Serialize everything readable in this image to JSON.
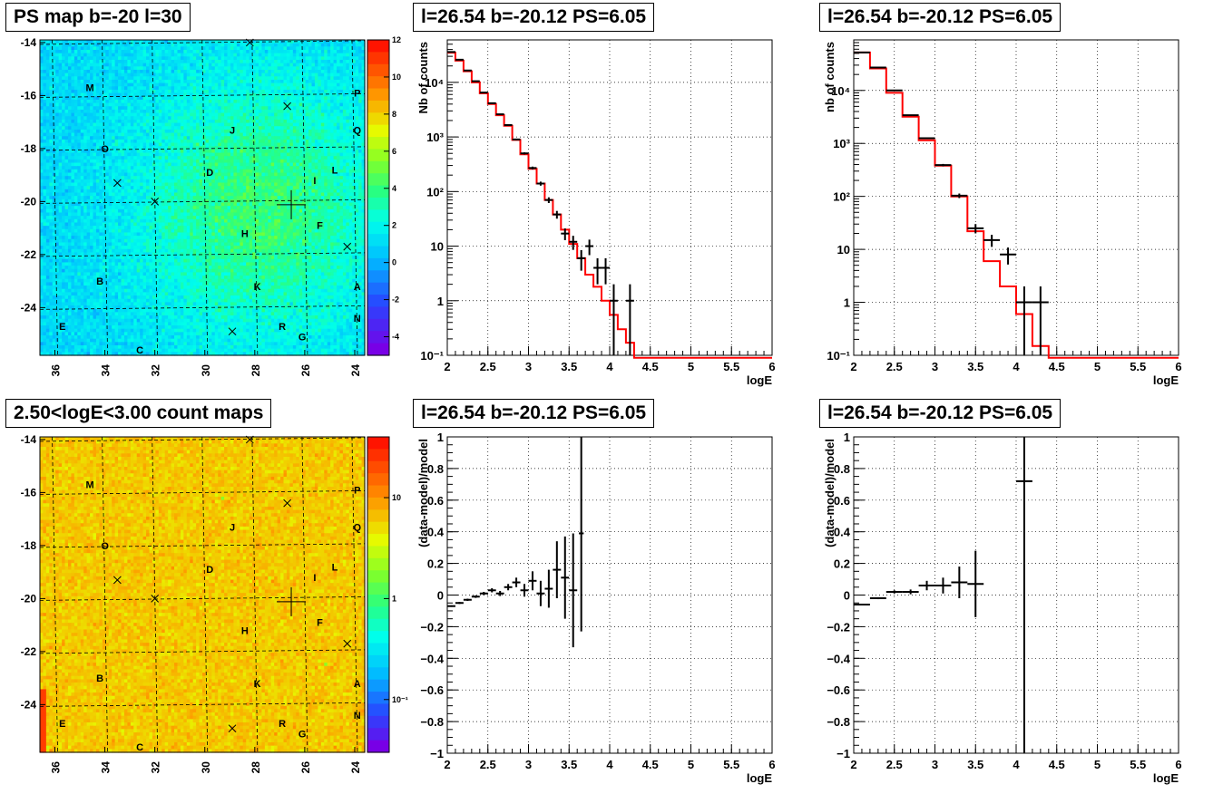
{
  "titles": {
    "map_top": "PS map b=-20 l=30",
    "map_bottom": "2.50<logE<3.00 count maps",
    "spec_mid": "l=26.54 b=-20.12 PS=6.05",
    "spec_right": "l=26.54 b=-20.12 PS=6.05",
    "res_mid": "l=26.54 b=-20.12 PS=6.05",
    "res_right": "l=26.54 b=-20.12 PS=6.05"
  },
  "chart_data": [
    {
      "id": "map_top",
      "type": "heatmap",
      "title": "PS map b=-20 l=30",
      "xticks": [
        "36",
        "34",
        "32",
        "30",
        "28",
        "26",
        "24"
      ],
      "yticks": [
        "-14",
        "-16",
        "-18",
        "-20",
        "-22",
        "-24"
      ],
      "xlim": [
        36.6,
        23.6
      ],
      "ylim": [
        -25.8,
        -13.9
      ],
      "colorbar": {
        "scale": "linear",
        "range": [
          -5,
          12
        ],
        "ticks": [
          "12",
          "10",
          "8",
          "6",
          "4",
          "2",
          "0",
          "-2",
          "-4"
        ]
      },
      "grid": true,
      "labels": [
        {
          "t": "M",
          "l": 34.6,
          "b": -15.7
        },
        {
          "t": "P",
          "l": 23.9,
          "b": -15.9
        },
        {
          "t": "J",
          "l": 28.9,
          "b": -17.3
        },
        {
          "t": "Q",
          "l": 23.9,
          "b": -17.3
        },
        {
          "t": "O",
          "l": 34.0,
          "b": -18.0
        },
        {
          "t": "D",
          "l": 29.8,
          "b": -18.9
        },
        {
          "t": "L",
          "l": 24.8,
          "b": -18.8
        },
        {
          "t": "I",
          "l": 25.6,
          "b": -19.2
        },
        {
          "t": "H",
          "l": 28.4,
          "b": -21.2
        },
        {
          "t": "F",
          "l": 25.4,
          "b": -20.9
        },
        {
          "t": "B",
          "l": 34.2,
          "b": -23.0
        },
        {
          "t": "K",
          "l": 27.9,
          "b": -23.2
        },
        {
          "t": "A",
          "l": 23.9,
          "b": -23.2
        },
        {
          "t": "N",
          "l": 23.9,
          "b": -24.4
        },
        {
          "t": "E",
          "l": 35.7,
          "b": -24.7
        },
        {
          "t": "R",
          "l": 26.9,
          "b": -24.7
        },
        {
          "t": "G",
          "l": 26.1,
          "b": -25.1
        },
        {
          "t": "C",
          "l": 32.6,
          "b": -25.6
        }
      ],
      "markers": [
        {
          "l": 28.2,
          "b": -14.0
        },
        {
          "l": 26.7,
          "b": -16.4
        },
        {
          "l": 33.5,
          "b": -19.3
        },
        {
          "l": 32.0,
          "b": -20.0
        },
        {
          "l": 24.3,
          "b": -21.7
        },
        {
          "l": 28.9,
          "b": -24.9
        }
      ],
      "source": {
        "l": 26.54,
        "b": -20.12
      }
    },
    {
      "id": "map_bottom",
      "type": "heatmap",
      "title": "2.50<logE<3.00 count maps",
      "xticks": [
        "36",
        "34",
        "32",
        "30",
        "28",
        "26",
        "24"
      ],
      "yticks": [
        "-14",
        "-16",
        "-18",
        "-20",
        "-22",
        "-24"
      ],
      "xlim": [
        36.6,
        23.6
      ],
      "ylim": [
        -25.8,
        -13.9
      ],
      "colorbar": {
        "scale": "log",
        "range": [
          0.03,
          40
        ],
        "ticks": [
          "10",
          "1",
          "10⁻¹"
        ]
      },
      "grid": true
    },
    {
      "id": "spec_mid",
      "type": "line",
      "title": "l=26.54 b=-20.12 PS=6.05",
      "xlabel": "logE",
      "ylabel": "Nb of counts",
      "xlim": [
        2,
        6
      ],
      "ylim": [
        0.1,
        60000
      ],
      "yscale": "log",
      "xticks": [
        "2",
        "2.5",
        "3",
        "3.5",
        "4",
        "4.5",
        "5",
        "5.5",
        "6"
      ],
      "yticks": [
        {
          "v": 0.1,
          "t": "10⁻¹"
        },
        {
          "v": 1,
          "t": "1"
        },
        {
          "v": 10,
          "t": "10"
        },
        {
          "v": 100,
          "t": "10²"
        },
        {
          "v": 1000,
          "t": "10³"
        },
        {
          "v": 10000,
          "t": "10⁴"
        }
      ],
      "grid": true,
      "model": {
        "name": "model",
        "color": "#ff0000",
        "edges": [
          2,
          2.1,
          2.2,
          2.3,
          2.4,
          2.5,
          2.6,
          2.7,
          2.8,
          2.9,
          3.0,
          3.1,
          3.2,
          3.3,
          3.4,
          3.5,
          3.6,
          3.7,
          3.8,
          3.9,
          4.0,
          4.1,
          4.2,
          4.3,
          6
        ],
        "values": [
          35000,
          25000,
          16000,
          10000,
          6300,
          4000,
          2500,
          1600,
          880,
          480,
          260,
          140,
          70,
          38,
          20,
          11,
          6,
          3,
          1.8,
          1.0,
          0.55,
          0.3,
          0.17,
          0.09
        ]
      },
      "data": [
        {
          "x": 2.05,
          "y": 36000,
          "dx": 0.05
        },
        {
          "x": 2.15,
          "y": 26000,
          "dx": 0.05
        },
        {
          "x": 2.25,
          "y": 16500,
          "dx": 0.05
        },
        {
          "x": 2.35,
          "y": 10500,
          "dx": 0.05
        },
        {
          "x": 2.45,
          "y": 6500,
          "dx": 0.05
        },
        {
          "x": 2.55,
          "y": 4150,
          "dx": 0.05
        },
        {
          "x": 2.65,
          "y": 2600,
          "dx": 0.05
        },
        {
          "x": 2.75,
          "y": 1650,
          "dx": 0.05
        },
        {
          "x": 2.85,
          "y": 900,
          "dx": 0.05
        },
        {
          "x": 2.95,
          "y": 500,
          "dx": 0.05
        },
        {
          "x": 3.05,
          "y": 270,
          "dx": 0.05
        },
        {
          "x": 3.15,
          "y": 140,
          "dx": 0.05
        },
        {
          "x": 3.25,
          "y": 70,
          "dx": 0.05
        },
        {
          "x": 3.35,
          "y": 38,
          "dx": 0.05
        },
        {
          "x": 3.45,
          "y": 17,
          "dx": 0.05
        },
        {
          "x": 3.55,
          "y": 12,
          "dx": 0.05
        },
        {
          "x": 3.65,
          "y": 6,
          "dx": 0.05
        },
        {
          "x": 3.75,
          "y": 10,
          "dx": 0.05
        },
        {
          "x": 3.85,
          "y": 4,
          "dx": 0.05
        },
        {
          "x": 3.95,
          "y": 4,
          "dx": 0.05
        },
        {
          "x": 4.05,
          "y": 1,
          "dx": 0.05
        },
        {
          "x": 4.25,
          "y": 1,
          "dx": 0.05
        }
      ]
    },
    {
      "id": "spec_right",
      "type": "line",
      "title": "l=26.54 b=-20.12 PS=6.05",
      "xlabel": "logE",
      "ylabel": "nb of counts",
      "xlim": [
        2,
        6
      ],
      "ylim": [
        0.1,
        90000
      ],
      "yscale": "log",
      "xticks": [
        "2",
        "2.5",
        "3",
        "3.5",
        "4",
        "4.5",
        "5",
        "5.5",
        "6"
      ],
      "yticks": [
        {
          "v": 0.1,
          "t": "10⁻¹"
        },
        {
          "v": 1,
          "t": "1"
        },
        {
          "v": 10,
          "t": "10"
        },
        {
          "v": 100,
          "t": "10²"
        },
        {
          "v": 1000,
          "t": "10³"
        },
        {
          "v": 10000,
          "t": "10⁴"
        }
      ],
      "grid": true,
      "model": {
        "name": "model",
        "color": "#ff0000",
        "edges": [
          2,
          2.2,
          2.4,
          2.6,
          2.8,
          3.0,
          3.2,
          3.4,
          3.6,
          3.8,
          4.0,
          4.2,
          4.4,
          6
        ],
        "values": [
          52000,
          26000,
          9000,
          3200,
          1150,
          380,
          100,
          22,
          6,
          2,
          0.6,
          0.15,
          0.09
        ]
      },
      "data": [
        {
          "x": 2.1,
          "y": 52000,
          "dx": 0.1
        },
        {
          "x": 2.3,
          "y": 27000,
          "dx": 0.1
        },
        {
          "x": 2.5,
          "y": 10000,
          "dx": 0.1
        },
        {
          "x": 2.7,
          "y": 3400,
          "dx": 0.1
        },
        {
          "x": 2.9,
          "y": 1250,
          "dx": 0.1
        },
        {
          "x": 3.1,
          "y": 390,
          "dx": 0.1
        },
        {
          "x": 3.3,
          "y": 103,
          "dx": 0.1
        },
        {
          "x": 3.5,
          "y": 25,
          "dx": 0.1
        },
        {
          "x": 3.7,
          "y": 15,
          "dx": 0.1
        },
        {
          "x": 3.9,
          "y": 8,
          "dx": 0.1
        },
        {
          "x": 4.1,
          "y": 1,
          "dx": 0.1
        },
        {
          "x": 4.3,
          "y": 1,
          "dx": 0.1
        }
      ]
    },
    {
      "id": "res_mid",
      "type": "scatter",
      "title": "l=26.54 b=-20.12 PS=6.05",
      "xlabel": "logE",
      "ylabel": "(data-model)/model",
      "xlim": [
        2,
        6
      ],
      "ylim": [
        -1,
        1
      ],
      "xticks": [
        "2",
        "2.5",
        "3",
        "3.5",
        "4",
        "4.5",
        "5",
        "5.5",
        "6"
      ],
      "yticks": [
        "-1",
        "-0.8",
        "-0.6",
        "-0.4",
        "-0.2",
        "0",
        "0.2",
        "0.4",
        "0.6",
        "0.8",
        "1"
      ],
      "grid": true,
      "points": [
        {
          "x": 2.05,
          "y": -0.07,
          "dx": 0.05,
          "e": 0.005
        },
        {
          "x": 2.15,
          "y": -0.05,
          "dx": 0.05,
          "e": 0.006
        },
        {
          "x": 2.25,
          "y": -0.03,
          "dx": 0.05,
          "e": 0.007
        },
        {
          "x": 2.35,
          "y": -0.01,
          "dx": 0.05,
          "e": 0.008
        },
        {
          "x": 2.45,
          "y": 0.01,
          "dx": 0.05,
          "e": 0.01
        },
        {
          "x": 2.55,
          "y": 0.03,
          "dx": 0.05,
          "e": 0.013
        },
        {
          "x": 2.65,
          "y": 0.01,
          "dx": 0.05,
          "e": 0.016
        },
        {
          "x": 2.75,
          "y": 0.05,
          "dx": 0.05,
          "e": 0.02
        },
        {
          "x": 2.85,
          "y": 0.08,
          "dx": 0.05,
          "e": 0.03
        },
        {
          "x": 2.95,
          "y": 0.03,
          "dx": 0.05,
          "e": 0.04
        },
        {
          "x": 3.05,
          "y": 0.09,
          "dx": 0.05,
          "e": 0.06
        },
        {
          "x": 3.15,
          "y": 0.01,
          "dx": 0.05,
          "e": 0.08
        },
        {
          "x": 3.25,
          "y": 0.04,
          "dx": 0.05,
          "e": 0.12
        },
        {
          "x": 3.35,
          "y": 0.16,
          "dx": 0.05,
          "e": 0.18
        },
        {
          "x": 3.45,
          "y": 0.11,
          "dx": 0.05,
          "e": 0.26
        },
        {
          "x": 3.55,
          "y": 0.03,
          "dx": 0.05,
          "e": 0.36
        },
        {
          "x": 3.65,
          "y": 0.39,
          "dx": 0.03,
          "e": 0.62
        }
      ]
    },
    {
      "id": "res_right",
      "type": "scatter",
      "title": "l=26.54 b=-20.12 PS=6.05",
      "xlabel": "logE",
      "ylabel": "(data-model)/model",
      "xlim": [
        2,
        6
      ],
      "ylim": [
        -1,
        1
      ],
      "xticks": [
        "2",
        "2.5",
        "3",
        "3.5",
        "4",
        "4.5",
        "5",
        "5.5",
        "6"
      ],
      "yticks": [
        "-1",
        "-0.8",
        "-0.6",
        "-0.4",
        "-0.2",
        "0",
        "0.2",
        "0.4",
        "0.6",
        "0.8",
        "1"
      ],
      "grid": true,
      "points": [
        {
          "x": 2.1,
          "y": -0.06,
          "dx": 0.1,
          "e": 0.004
        },
        {
          "x": 2.3,
          "y": -0.02,
          "dx": 0.1,
          "e": 0.006
        },
        {
          "x": 2.5,
          "y": 0.02,
          "dx": 0.1,
          "e": 0.01
        },
        {
          "x": 2.7,
          "y": 0.02,
          "dx": 0.1,
          "e": 0.015
        },
        {
          "x": 2.9,
          "y": 0.06,
          "dx": 0.1,
          "e": 0.03
        },
        {
          "x": 3.1,
          "y": 0.06,
          "dx": 0.1,
          "e": 0.05
        },
        {
          "x": 3.3,
          "y": 0.08,
          "dx": 0.1,
          "e": 0.1
        },
        {
          "x": 3.5,
          "y": 0.07,
          "dx": 0.1,
          "e": 0.21
        },
        {
          "x": 4.1,
          "y": 0.72,
          "dx": 0.1,
          "e": 1.8
        }
      ]
    }
  ]
}
